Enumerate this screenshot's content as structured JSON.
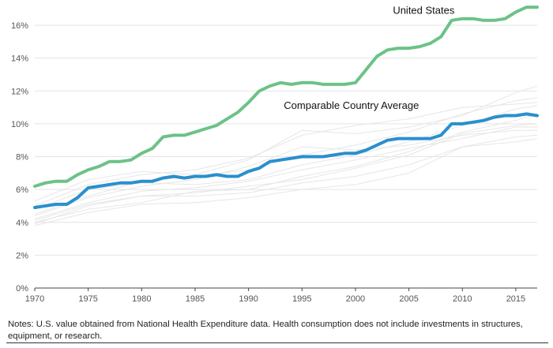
{
  "chart_data": {
    "type": "line",
    "title": "",
    "xlabel": "",
    "ylabel": "",
    "xlim": [
      1970,
      2017
    ],
    "ylim": [
      0,
      17
    ],
    "yticks": [
      0,
      2,
      4,
      6,
      8,
      10,
      12,
      14,
      16
    ],
    "ytick_labels": [
      "0%",
      "2%",
      "4%",
      "6%",
      "8%",
      "10%",
      "12%",
      "14%",
      "16%"
    ],
    "xticks": [
      1970,
      1975,
      1980,
      1985,
      1990,
      1995,
      2000,
      2005,
      2010,
      2015
    ],
    "xtick_labels": [
      "1970",
      "1975",
      "1980",
      "1985",
      "1990",
      "1995",
      "2000",
      "2005",
      "2010",
      "2015"
    ],
    "grid": "horizontal",
    "series": [
      {
        "name": "United States",
        "color": "#6cc287",
        "x": [
          1970,
          1971,
          1972,
          1973,
          1974,
          1975,
          1976,
          1977,
          1978,
          1979,
          1980,
          1981,
          1982,
          1983,
          1984,
          1985,
          1986,
          1987,
          1988,
          1989,
          1990,
          1991,
          1992,
          1993,
          1994,
          1995,
          1996,
          1997,
          1998,
          1999,
          2000,
          2001,
          2002,
          2003,
          2004,
          2005,
          2006,
          2007,
          2008,
          2009,
          2010,
          2011,
          2012,
          2013,
          2014,
          2015,
          2016,
          2017
        ],
        "y": [
          6.2,
          6.4,
          6.5,
          6.5,
          6.9,
          7.2,
          7.4,
          7.7,
          7.7,
          7.8,
          8.2,
          8.5,
          9.2,
          9.3,
          9.3,
          9.5,
          9.7,
          9.9,
          10.3,
          10.7,
          11.3,
          12.0,
          12.3,
          12.5,
          12.4,
          12.5,
          12.5,
          12.4,
          12.4,
          12.4,
          12.5,
          13.3,
          14.1,
          14.5,
          14.6,
          14.6,
          14.7,
          14.9,
          15.3,
          16.3,
          16.4,
          16.4,
          16.3,
          16.3,
          16.4,
          16.8,
          17.1,
          17.1
        ]
      },
      {
        "name": "Comparable Country Average",
        "color": "#2a8fcd",
        "x": [
          1970,
          1971,
          1972,
          1973,
          1974,
          1975,
          1976,
          1977,
          1978,
          1979,
          1980,
          1981,
          1982,
          1983,
          1984,
          1985,
          1986,
          1987,
          1988,
          1989,
          1990,
          1991,
          1992,
          1993,
          1994,
          1995,
          1996,
          1997,
          1998,
          1999,
          2000,
          2001,
          2002,
          2003,
          2004,
          2005,
          2006,
          2007,
          2008,
          2009,
          2010,
          2011,
          2012,
          2013,
          2014,
          2015,
          2016,
          2017
        ],
        "y": [
          4.9,
          5.0,
          5.1,
          5.1,
          5.5,
          6.1,
          6.2,
          6.3,
          6.4,
          6.4,
          6.5,
          6.5,
          6.7,
          6.8,
          6.7,
          6.8,
          6.8,
          6.9,
          6.8,
          6.8,
          7.1,
          7.3,
          7.7,
          7.8,
          7.9,
          8.0,
          8.0,
          8.0,
          8.1,
          8.2,
          8.2,
          8.4,
          8.7,
          9.0,
          9.1,
          9.1,
          9.1,
          9.1,
          9.3,
          10.0,
          10.0,
          10.1,
          10.2,
          10.4,
          10.5,
          10.5,
          10.6,
          10.5
        ]
      }
    ],
    "background_series": [
      {
        "color": "#e6e6e6",
        "x": [
          1970,
          1975,
          1980,
          1985,
          1990,
          1995,
          2000,
          2005,
          2010,
          2015,
          2017
        ],
        "y": [
          4.5,
          5.6,
          6.5,
          6.8,
          7.2,
          8.1,
          8.7,
          9.5,
          10.6,
          11.4,
          11.6
        ]
      },
      {
        "color": "#e6e6e6",
        "x": [
          1970,
          1975,
          1980,
          1985,
          1990,
          1995,
          2000,
          2005,
          2010,
          2015,
          2017
        ],
        "y": [
          4.0,
          4.8,
          5.2,
          5.9,
          6.0,
          6.8,
          7.4,
          8.3,
          9.5,
          10.2,
          10.6
        ]
      },
      {
        "color": "#e6e6e6",
        "x": [
          1970,
          1975,
          1980,
          1985,
          1990,
          1995,
          2000,
          2005,
          2010,
          2015,
          2017
        ],
        "y": [
          5.3,
          6.6,
          7.1,
          6.9,
          7.8,
          9.6,
          9.4,
          9.8,
          10.5,
          11.9,
          12.3
        ]
      },
      {
        "color": "#e6e6e6",
        "x": [
          1970,
          1975,
          1980,
          1985,
          1990,
          1995,
          2000,
          2005,
          2010,
          2015,
          2017
        ],
        "y": [
          3.9,
          5.0,
          5.6,
          5.6,
          5.8,
          6.4,
          6.8,
          7.5,
          8.6,
          8.9,
          9.1
        ]
      },
      {
        "color": "#e6e6e6",
        "x": [
          1970,
          1975,
          1980,
          1985,
          1990,
          1995,
          2000,
          2005,
          2010,
          2015,
          2017
        ],
        "y": [
          4.8,
          6.0,
          6.4,
          6.3,
          6.6,
          7.5,
          8.1,
          8.9,
          9.9,
          10.9,
          11.1
        ]
      },
      {
        "color": "#e6e6e6",
        "x": [
          1970,
          1975,
          1980,
          1985,
          1990,
          1995,
          2000,
          2005,
          2010,
          2015,
          2017
        ],
        "y": [
          4.2,
          5.2,
          5.9,
          6.1,
          6.5,
          7.2,
          7.8,
          8.5,
          9.1,
          9.8,
          9.8
        ]
      },
      {
        "color": "#e6e6e6",
        "x": [
          1970,
          1975,
          1980,
          1985,
          1990,
          1995,
          2000,
          2005,
          2010,
          2015,
          2017
        ],
        "y": [
          4.4,
          5.5,
          6.2,
          6.6,
          7.4,
          8.6,
          8.4,
          8.7,
          9.3,
          9.6,
          9.6
        ]
      },
      {
        "color": "#e6e6e6",
        "x": [
          1970,
          1975,
          1980,
          1985,
          1990,
          1995,
          2000,
          2005,
          2010,
          2015,
          2017
        ],
        "y": [
          5.0,
          6.3,
          6.9,
          7.2,
          7.9,
          9.3,
          9.9,
          10.3,
          11.0,
          11.2,
          11.3
        ]
      },
      {
        "color": "#e6e6e6",
        "x": [
          1970,
          1975,
          1980,
          1985,
          1990,
          1995,
          2000,
          2005,
          2010,
          2015,
          2017
        ],
        "y": [
          3.8,
          4.6,
          5.1,
          5.2,
          5.5,
          6.0,
          6.3,
          7.0,
          8.6,
          9.2,
          9.3
        ]
      },
      {
        "color": "#e6e6e6",
        "x": [
          1970,
          1975,
          1980,
          1985,
          1990,
          1995,
          2000,
          2005,
          2010,
          2015,
          2017
        ],
        "y": [
          4.1,
          5.1,
          5.6,
          5.8,
          6.2,
          6.6,
          7.3,
          8.1,
          9.4,
          9.9,
          10.0
        ]
      }
    ]
  },
  "notes": "Notes: U.S. value obtained from National Health Expenditure data. Health consumption does not include investments in structures, equipment, or research."
}
